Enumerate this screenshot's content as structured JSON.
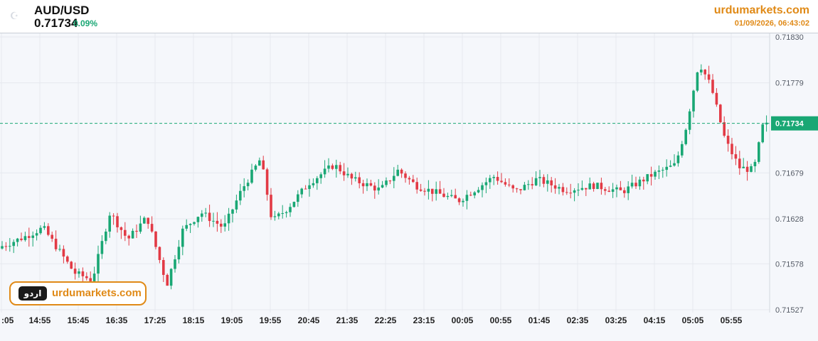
{
  "header": {
    "symbol": "AUD/USD",
    "price": "0.71734",
    "change": "0.09%",
    "site": "urdumarkets.com",
    "timestamp": "01/09/2026, 06:43:02"
  },
  "badge": {
    "logo_text": "اردو",
    "site_text": "urdumarkets.com"
  },
  "colors": {
    "up": "#19a774",
    "down": "#e23a45",
    "site": "#e08a17",
    "grid": "#e6e9ef"
  },
  "icons": {
    "header_logo": "urdu-markets-logo-icon",
    "badge_logo": "urdu-logo-icon"
  },
  "chart_data": {
    "type": "candlestick",
    "x_ticks": [
      ":05",
      "14:55",
      "15:45",
      "16:35",
      "17:25",
      "18:15",
      "19:05",
      "19:55",
      "20:45",
      "21:35",
      "22:25",
      "23:15",
      "00:05",
      "00:55",
      "01:45",
      "02:35",
      "03:25",
      "04:15",
      "05:05",
      "05:55"
    ],
    "y_ticks": [
      "0.71830",
      "0.71779",
      "0.71734",
      "0.71679",
      "0.71628",
      "0.71578",
      "0.71527"
    ],
    "ylim": [
      0.71527,
      0.7183
    ],
    "last_price": 0.71734,
    "last_price_label": "0.71734",
    "grid": true
  }
}
